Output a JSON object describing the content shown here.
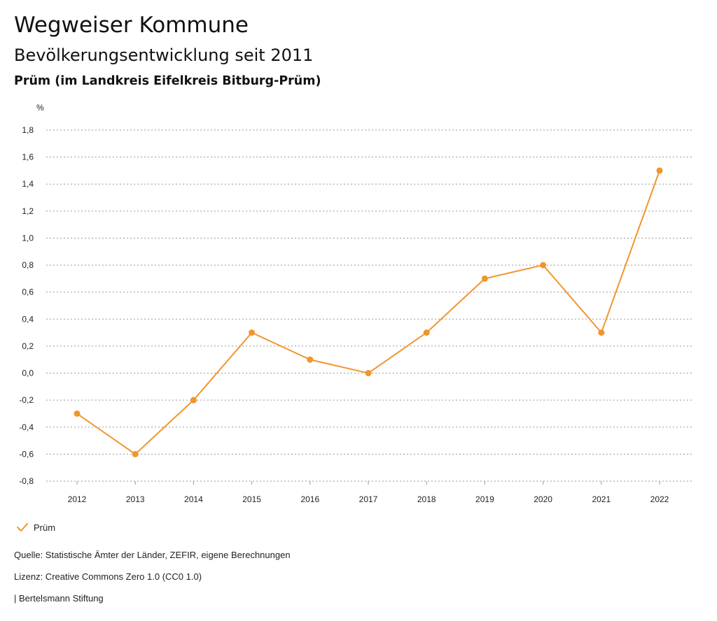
{
  "header": {
    "title": "Wegweiser Kommune",
    "subtitle": "Bevölkerungsentwicklung seit 2011",
    "place": "Prüm (im Landkreis Eifelkreis Bitburg-Prüm)"
  },
  "chart_data": {
    "type": "line",
    "title": "Bevölkerungsentwicklung seit 2011",
    "xlabel": "",
    "ylabel": "%",
    "x": [
      "2012",
      "2013",
      "2014",
      "2015",
      "2016",
      "2017",
      "2018",
      "2019",
      "2020",
      "2021",
      "2022"
    ],
    "series": [
      {
        "name": "Prüm",
        "color": "#f0962d",
        "values": [
          -0.3,
          -0.6,
          -0.2,
          0.3,
          0.1,
          0.0,
          0.3,
          0.7,
          0.8,
          0.3,
          1.5
        ]
      }
    ],
    "ylim": [
      -0.8,
      1.8
    ],
    "yticks": [
      -0.8,
      -0.6,
      -0.4,
      -0.2,
      0.0,
      0.2,
      0.4,
      0.6,
      0.8,
      1.0,
      1.2,
      1.4,
      1.6,
      1.8
    ],
    "ytick_labels": [
      "-0,8",
      "-0,6",
      "-0,4",
      "-0,2",
      "0,0",
      "0,2",
      "0,4",
      "0,6",
      "0,8",
      "1,0",
      "1,2",
      "1,4",
      "1,6",
      "1,8"
    ],
    "grid": true,
    "legend_position": "bottom-left"
  },
  "legend": {
    "label": "Prüm",
    "icon": "check-icon",
    "color": "#f0962d"
  },
  "footer": {
    "source": "Quelle: Statistische Ämter der Länder, ZEFIR, eigene Berechnungen",
    "license": "Lizenz: Creative Commons Zero 1.0 (CC0 1.0)",
    "credit": "| Bertelsmann Stiftung"
  }
}
